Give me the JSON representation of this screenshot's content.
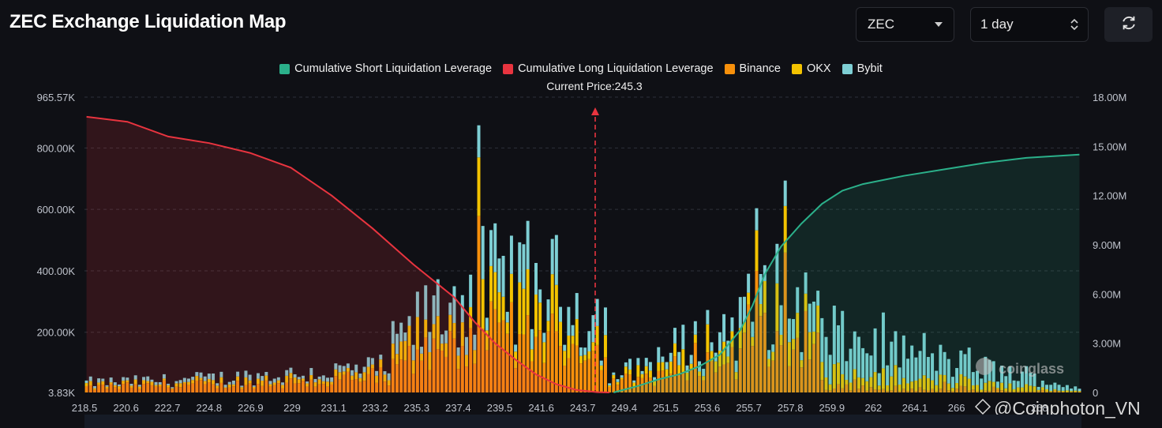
{
  "title": "ZEC Exchange Liquidation Map",
  "controls": {
    "coin": "ZEC",
    "range": "1 day",
    "refresh_icon": "refresh-icon"
  },
  "legend": [
    {
      "label": "Cumulative Short Liquidation Leverage",
      "color": "#2bb08a"
    },
    {
      "label": "Cumulative Long Liquidation Leverage",
      "color": "#e8343f"
    },
    {
      "label": "Binance",
      "color": "#f7900b"
    },
    {
      "label": "OKX",
      "color": "#f3c300"
    },
    {
      "label": "Bybit",
      "color": "#7ecfd4"
    }
  ],
  "current_price_label": "Current Price:245.3",
  "watermark": {
    "logo": "coinglass",
    "credit": "@Coinphoton_VN"
  },
  "chart_data": {
    "type": "bar",
    "x_tick_labels": [
      "218.5",
      "220.6",
      "222.7",
      "224.8",
      "226.9",
      "229",
      "231.1",
      "233.2",
      "235.3",
      "237.4",
      "239.5",
      "241.6",
      "243.7",
      "249.4",
      "251.5",
      "253.6",
      "255.7",
      "257.8",
      "259.9",
      "262",
      "264.1",
      "266",
      "",
      "268"
    ],
    "left_axis": {
      "ticks": [
        "3.83K",
        "200.00K",
        "400.00K",
        "600.00K",
        "800.00K",
        "965.57K"
      ],
      "range": [
        3830,
        965570
      ]
    },
    "right_axis": {
      "ticks": [
        "0",
        "3.00M",
        "6.00M",
        "9.00M",
        "12.00M",
        "15.00M",
        "18.00M"
      ],
      "range": [
        0,
        18000000
      ]
    },
    "current_price": 245.3,
    "long_cumulative": {
      "name": "Cumulative Long Liquidation Leverage",
      "x_bar_index": [
        0,
        10,
        20,
        30,
        40,
        50,
        60,
        70,
        80,
        90,
        95,
        100,
        105,
        110,
        115,
        120,
        125,
        128
      ],
      "values": [
        16800000,
        16500000,
        15600000,
        15200000,
        14600000,
        13700000,
        12000000,
        10000000,
        7800000,
        5800000,
        4300000,
        3000000,
        2000000,
        1100000,
        500000,
        150000,
        20000,
        0
      ]
    },
    "short_cumulative": {
      "name": "Cumulative Short Liquidation Leverage",
      "x_bar_index": [
        129,
        135,
        140,
        145,
        150,
        155,
        160,
        163,
        166,
        170,
        175,
        180,
        185,
        190,
        200,
        210,
        220,
        230,
        243
      ],
      "values": [
        0,
        400000,
        800000,
        1100000,
        1600000,
        2300000,
        3800000,
        5300000,
        7200000,
        8900000,
        10300000,
        11500000,
        12300000,
        12700000,
        13200000,
        13600000,
        14000000,
        14300000,
        14500000
      ]
    },
    "bar_count": 244,
    "peak_bars": [
      {
        "index": 96,
        "total": 870000
      },
      {
        "index": 171,
        "total": 690000
      },
      {
        "index": 164,
        "total": 600000
      }
    ]
  }
}
